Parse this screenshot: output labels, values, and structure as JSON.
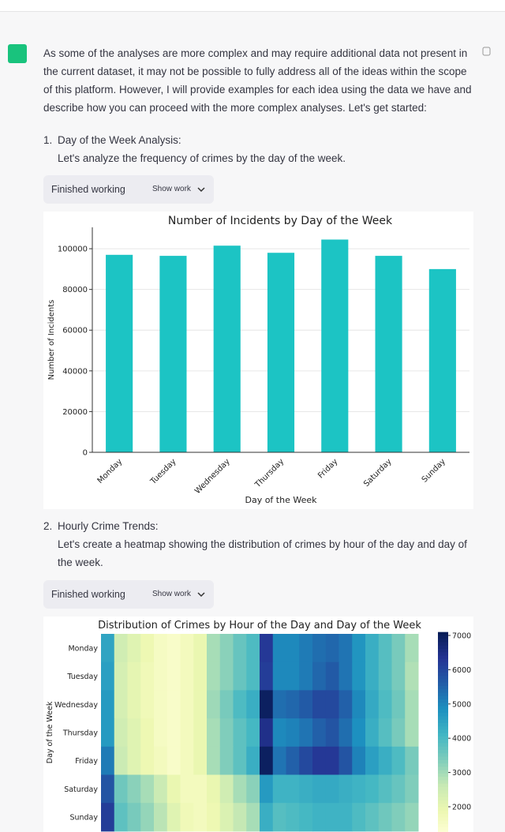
{
  "message": {
    "paragraph": "As some of the analyses are more complex and may require additional data not present in the current dataset, it may not be possible to fully address all of the ideas within the scope of this platform. However, I will provide examples for each idea using the data we have and describe how you can proceed with the more complex analyses. Let's get started:",
    "items": [
      {
        "number": "1.",
        "title": "Day of the Week Analysis:",
        "text": "Let's analyze the frequency of crimes by the day of the week.",
        "status": "Finished working",
        "toggle": "Show work"
      },
      {
        "number": "2.",
        "title": "Hourly Crime Trends:",
        "text": "Let's create a heatmap showing the distribution of crimes by hour of the day and day of the week.",
        "status": "Finished working",
        "toggle": "Show work"
      }
    ]
  },
  "chart_data": [
    {
      "type": "bar",
      "title": "Number of Incidents by Day of the Week",
      "xlabel": "Day of the Week",
      "ylabel": "Number of Incidents",
      "categories": [
        "Monday",
        "Tuesday",
        "Wednesday",
        "Thursday",
        "Friday",
        "Saturday",
        "Sunday"
      ],
      "values": [
        97000,
        96500,
        101500,
        98000,
        104500,
        96500,
        90000
      ],
      "color": "#1cc4c4",
      "ylim": [
        0,
        110500
      ],
      "yticks": [
        0,
        20000,
        40000,
        60000,
        80000,
        100000
      ],
      "grid": true
    },
    {
      "type": "heatmap",
      "title": "Distribution of Crimes by Hour of the Day and Day of the Week",
      "ylabel": "Day of the Week",
      "y_categories": [
        "Monday",
        "Tuesday",
        "Wednesday",
        "Thursday",
        "Friday",
        "Saturday",
        "Sunday"
      ],
      "values": [
        [
          4500,
          2500,
          2200,
          1900,
          1600,
          1500,
          1700,
          2000,
          3000,
          3300,
          3700,
          4000,
          6300,
          5000,
          5000,
          5200,
          5400,
          5500,
          5300,
          4800,
          4300,
          3900,
          3500,
          3000
        ],
        [
          4600,
          2400,
          2100,
          1800,
          1600,
          1500,
          1700,
          2000,
          3000,
          3300,
          3700,
          4000,
          6200,
          5000,
          5000,
          5200,
          5500,
          5700,
          5300,
          4800,
          4300,
          3900,
          3500,
          2900
        ],
        [
          4700,
          2400,
          2100,
          1800,
          1600,
          1500,
          1700,
          2000,
          3100,
          3500,
          4000,
          4300,
          7000,
          5400,
          5500,
          5700,
          6000,
          6000,
          5600,
          5000,
          4400,
          4000,
          3600,
          3000
        ],
        [
          4700,
          2500,
          2200,
          1900,
          1600,
          1500,
          1700,
          2000,
          3000,
          3400,
          3800,
          4100,
          6500,
          5000,
          5100,
          5300,
          5600,
          5800,
          5400,
          4900,
          4300,
          3900,
          3500,
          3000
        ],
        [
          5200,
          2600,
          2200,
          1900,
          1700,
          1500,
          1700,
          2000,
          3000,
          3400,
          3800,
          4300,
          7000,
          5300,
          5600,
          6000,
          6300,
          6300,
          5800,
          5100,
          4600,
          4300,
          4000,
          3500
        ],
        [
          5800,
          3600,
          3300,
          3000,
          2600,
          2000,
          1700,
          1700,
          2000,
          2500,
          3000,
          3300,
          4700,
          4200,
          4200,
          4300,
          4400,
          4400,
          4300,
          4200,
          4100,
          3900,
          3700,
          3400
        ],
        [
          6200,
          3800,
          3500,
          3200,
          2800,
          2200,
          1800,
          1700,
          1900,
          2300,
          2700,
          3000,
          4300,
          3900,
          4000,
          4100,
          4200,
          4200,
          4200,
          4000,
          3800,
          3600,
          3400,
          3200
        ]
      ],
      "colorscale": [
        "#ffffd9",
        "#edf8b1",
        "#c7e9b4",
        "#7fcdbb",
        "#41b6c4",
        "#1d91c0",
        "#225ea8",
        "#253494",
        "#081d58"
      ],
      "clim": [
        1200,
        7100
      ],
      "cticks": [
        2000,
        3000,
        4000,
        5000,
        6000,
        7000
      ]
    }
  ]
}
